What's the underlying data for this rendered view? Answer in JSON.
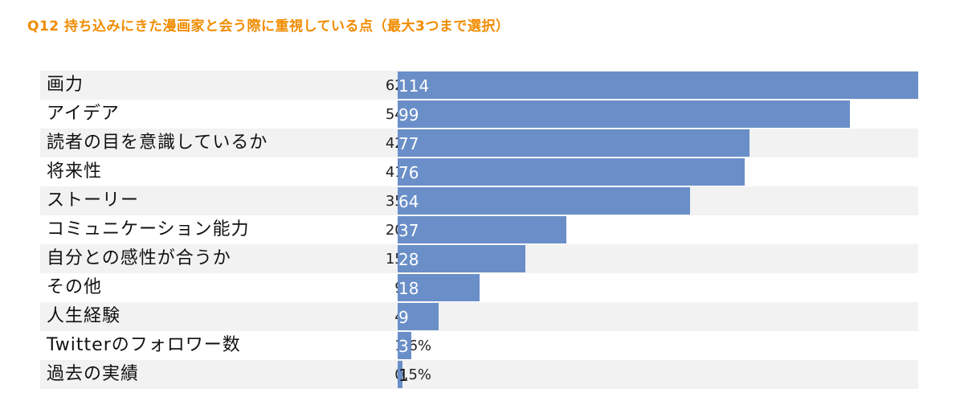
{
  "title": "Q12 持ち込みにきた漫画家と会う際に重視している点（最大3つまで選択）",
  "chart_data": {
    "type": "bar",
    "orientation": "horizontal",
    "title": "Q12 持ち込みにきた漫画家と会う際に重視している点（最大3つまで選択）",
    "bar_color": "#6a8fc8",
    "title_color": "#f08c00",
    "categories": [
      "画力",
      "アイデア",
      "読者の目を意識しているか",
      "将来性",
      "ストーリー",
      "コミュニケーション能力",
      "自分との感性が合うか",
      "その他",
      "人生経験",
      "Twitterのフォロワー数",
      "過去の実績"
    ],
    "percent_labels": [
      "62.6%",
      "54.4%",
      "42.3%",
      "41.8%",
      "35.2%",
      "20.3%",
      "15.4%",
      "9.9%",
      "4.9%",
      "1.6%",
      "0.5%"
    ],
    "values": [
      114,
      99,
      77,
      76,
      64,
      37,
      28,
      18,
      9,
      3,
      1
    ],
    "xlim": [
      0,
      114
    ]
  }
}
